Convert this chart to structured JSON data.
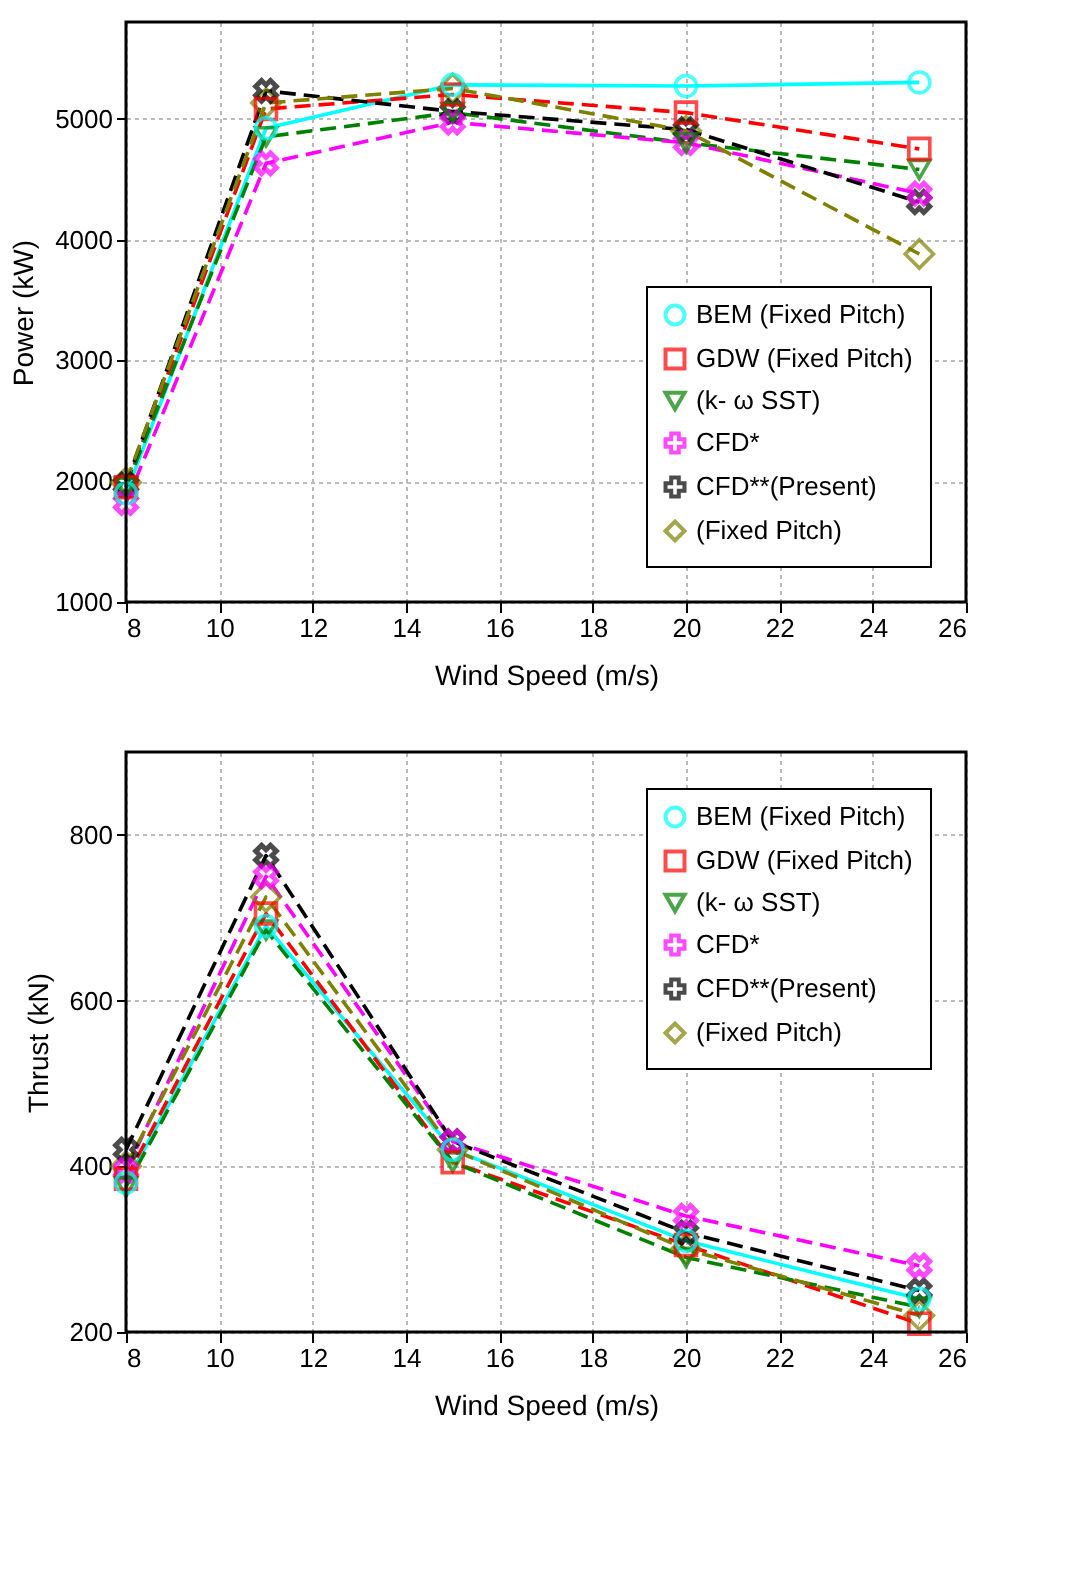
{
  "chart_data": [
    {
      "type": "line",
      "xlabel": "Wind Speed (m/s)",
      "ylabel": "Power (kW)",
      "x": [
        8,
        11,
        15,
        20,
        25
      ],
      "xlim": [
        8,
        26
      ],
      "xticks": [
        8,
        10,
        12,
        14,
        16,
        18,
        20,
        22,
        24,
        26
      ],
      "ylim": [
        1000,
        5800
      ],
      "yticks": [
        1000,
        2000,
        3000,
        4000,
        5000
      ],
      "grid": true,
      "legend": "bottom right",
      "series": [
        {
          "name": "BEM (Fixed Pitch)",
          "color": "#00ffff",
          "marker": "circle",
          "line_style": "solid",
          "values": [
            1900,
            4920,
            5280,
            5270,
            5300
          ]
        },
        {
          "name": "GDW (Fixed Pitch)",
          "color": "#ff0000",
          "marker": "square",
          "line_style": "dashed",
          "values": [
            1950,
            5080,
            5200,
            5050,
            4750
          ]
        },
        {
          "name": "(k- ω SST)",
          "color": "#008000",
          "marker": "triangle",
          "line_style": "dashed",
          "values": [
            1950,
            4850,
            5050,
            4800,
            4580
          ]
        },
        {
          "name": "CFD*",
          "color": "#ff00ff",
          "marker": "cross",
          "line_style": "dashed",
          "values": [
            1820,
            4630,
            4970,
            4800,
            4380
          ]
        },
        {
          "name": "CFD**(Present)",
          "color": "#000000",
          "marker": "cross",
          "line_style": "dashed",
          "values": [
            1970,
            5230,
            5060,
            4910,
            4310
          ]
        },
        {
          "name": "(Fixed Pitch)",
          "color": "#808000",
          "marker": "diamond",
          "line_style": "dashed",
          "values": [
            1990,
            5130,
            5250,
            4900,
            3880
          ]
        }
      ]
    },
    {
      "type": "line",
      "xlabel": "Wind Speed (m/s)",
      "ylabel": "Thrust (kN)",
      "x": [
        8,
        11,
        15,
        20,
        25
      ],
      "xlim": [
        8,
        26
      ],
      "xticks": [
        8,
        10,
        12,
        14,
        16,
        18,
        20,
        22,
        24,
        26
      ],
      "ylim": [
        200,
        900
      ],
      "yticks": [
        200,
        400,
        600,
        800
      ],
      "grid": true,
      "legend": "top right",
      "series": [
        {
          "name": "BEM (Fixed Pitch)",
          "color": "#00ffff",
          "marker": "circle",
          "line_style": "solid",
          "values": [
            380,
            690,
            420,
            310,
            240
          ]
        },
        {
          "name": "GDW (Fixed Pitch)",
          "color": "#ff0000",
          "marker": "square",
          "line_style": "dashed",
          "values": [
            385,
            705,
            405,
            305,
            210
          ]
        },
        {
          "name": "(k- ω SST)",
          "color": "#008000",
          "marker": "triangle",
          "line_style": "dashed",
          "values": [
            375,
            685,
            405,
            290,
            230
          ]
        },
        {
          "name": "CFD*",
          "color": "#ff00ff",
          "marker": "cross",
          "line_style": "dashed",
          "values": [
            395,
            750,
            430,
            340,
            280
          ]
        },
        {
          "name": "CFD**(Present)",
          "color": "#000000",
          "marker": "cross",
          "line_style": "dashed",
          "values": [
            420,
            775,
            430,
            320,
            250
          ]
        },
        {
          "name": "(Fixed Pitch)",
          "color": "#808000",
          "marker": "diamond",
          "line_style": "dashed",
          "values": [
            400,
            725,
            420,
            300,
            220
          ]
        }
      ]
    }
  ]
}
